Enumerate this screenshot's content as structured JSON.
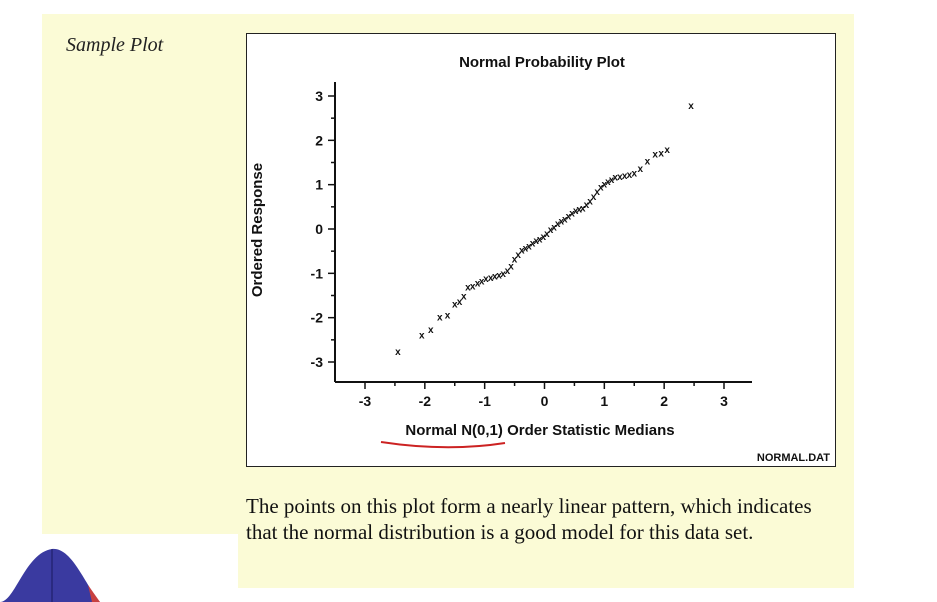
{
  "section_label": "Sample Plot",
  "caption": "The points on this plot form a nearly linear pattern, which indicates that the normal distribution is a good model for this data set.",
  "colors": {
    "panel_bg": "#fbfbd6",
    "underline": "#cc2222",
    "bell_fill": "#3a3aa0",
    "bell_accent": "#c84040"
  },
  "chart_data": {
    "type": "scatter",
    "title": "Normal Probability Plot",
    "xlabel": "Normal N(0,1) Order Statistic Medians",
    "ylabel": "Ordered Response",
    "source_label": "NORMAL.DAT",
    "marker": "x",
    "xlim": [
      -3,
      3
    ],
    "ylim": [
      -3,
      3
    ],
    "xticks": [
      "-3",
      "-2",
      "-1",
      "0",
      "1",
      "2",
      "3"
    ],
    "yticks": [
      "-3",
      "-2",
      "-1",
      "0",
      "1",
      "2",
      "3"
    ],
    "points": [
      [
        -2.45,
        -2.75
      ],
      [
        -2.05,
        -2.38
      ],
      [
        -1.9,
        -2.25
      ],
      [
        -1.75,
        -1.97
      ],
      [
        -1.62,
        -1.93
      ],
      [
        -1.5,
        -1.68
      ],
      [
        -1.42,
        -1.62
      ],
      [
        -1.35,
        -1.5
      ],
      [
        -1.28,
        -1.3
      ],
      [
        -1.2,
        -1.28
      ],
      [
        -1.12,
        -1.21
      ],
      [
        -1.05,
        -1.16
      ],
      [
        -0.98,
        -1.1
      ],
      [
        -0.9,
        -1.08
      ],
      [
        -0.83,
        -1.05
      ],
      [
        -0.76,
        -1.03
      ],
      [
        -0.69,
        -0.99
      ],
      [
        -0.62,
        -0.93
      ],
      [
        -0.56,
        -0.82
      ],
      [
        -0.5,
        -0.66
      ],
      [
        -0.44,
        -0.56
      ],
      [
        -0.38,
        -0.46
      ],
      [
        -0.32,
        -0.42
      ],
      [
        -0.26,
        -0.37
      ],
      [
        -0.2,
        -0.31
      ],
      [
        -0.14,
        -0.25
      ],
      [
        -0.08,
        -0.21
      ],
      [
        -0.02,
        -0.16
      ],
      [
        0.04,
        -0.09
      ],
      [
        0.1,
        0.0
      ],
      [
        0.16,
        0.06
      ],
      [
        0.22,
        0.14
      ],
      [
        0.28,
        0.19
      ],
      [
        0.34,
        0.24
      ],
      [
        0.4,
        0.31
      ],
      [
        0.46,
        0.37
      ],
      [
        0.52,
        0.43
      ],
      [
        0.58,
        0.46
      ],
      [
        0.64,
        0.49
      ],
      [
        0.7,
        0.56
      ],
      [
        0.76,
        0.64
      ],
      [
        0.82,
        0.74
      ],
      [
        0.88,
        0.86
      ],
      [
        0.94,
        0.96
      ],
      [
        1.0,
        1.03
      ],
      [
        1.06,
        1.08
      ],
      [
        1.12,
        1.13
      ],
      [
        1.18,
        1.18
      ],
      [
        1.26,
        1.2
      ],
      [
        1.34,
        1.22
      ],
      [
        1.42,
        1.24
      ],
      [
        1.5,
        1.28
      ],
      [
        1.6,
        1.38
      ],
      [
        1.72,
        1.55
      ],
      [
        1.85,
        1.7
      ],
      [
        1.95,
        1.72
      ],
      [
        2.05,
        1.8
      ],
      [
        2.45,
        2.8
      ]
    ]
  }
}
